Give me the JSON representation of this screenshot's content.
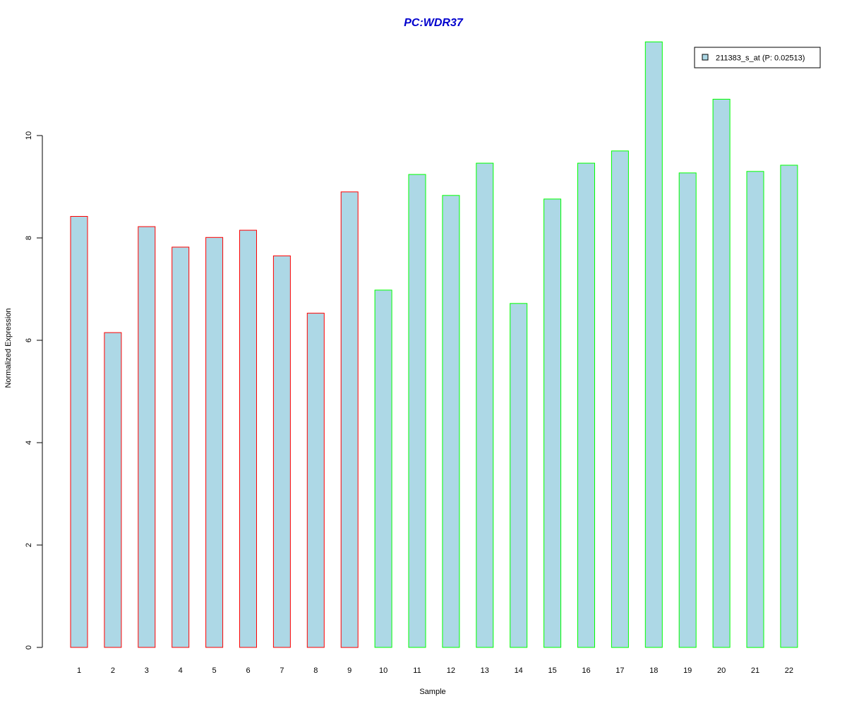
{
  "chart_data": {
    "type": "bar",
    "title": "PC:WDR37",
    "xlabel": "Sample",
    "ylabel": "Normalized Expression",
    "categories": [
      "1",
      "2",
      "3",
      "4",
      "5",
      "6",
      "7",
      "8",
      "9",
      "10",
      "11",
      "12",
      "13",
      "14",
      "15",
      "16",
      "17",
      "18",
      "19",
      "20",
      "21",
      "22"
    ],
    "values": [
      8.42,
      6.15,
      8.22,
      7.82,
      8.01,
      8.15,
      7.65,
      6.53,
      8.9,
      6.98,
      9.24,
      8.83,
      9.46,
      6.72,
      8.76,
      9.46,
      9.7,
      11.83,
      9.27,
      10.71,
      9.3,
      9.42
    ],
    "yticks": [
      0,
      2,
      4,
      6,
      8,
      10
    ],
    "ylim": [
      0,
      11.83
    ],
    "grid": false,
    "legend": {
      "position": "top-right",
      "entries": [
        "211383_s_at (P: 0.02513)"
      ]
    },
    "colors": {
      "bar_fill": "#ADD8E6",
      "group_1_border": "#FF0000",
      "group_2_border": "#00FF00",
      "title": "#0000CD"
    },
    "group_1_count": 9
  }
}
